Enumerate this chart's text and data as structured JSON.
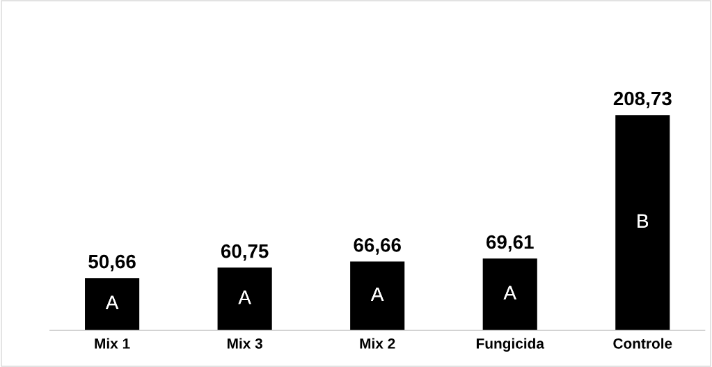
{
  "chart_data": {
    "type": "bar",
    "categories": [
      "Mix 1",
      "Mix 3",
      "Mix 2",
      "Fungicida",
      "Controle"
    ],
    "values": [
      50.66,
      60.75,
      66.66,
      69.61,
      208.73
    ],
    "color": "#000000",
    "value_labels": [
      "50,66",
      "60,75",
      "66,66",
      "69,61",
      "208,73"
    ],
    "annotations": [
      "A",
      "A",
      "A",
      "A",
      "B"
    ],
    "tick_labels": "x",
    "grid": false,
    "legend": false
  }
}
